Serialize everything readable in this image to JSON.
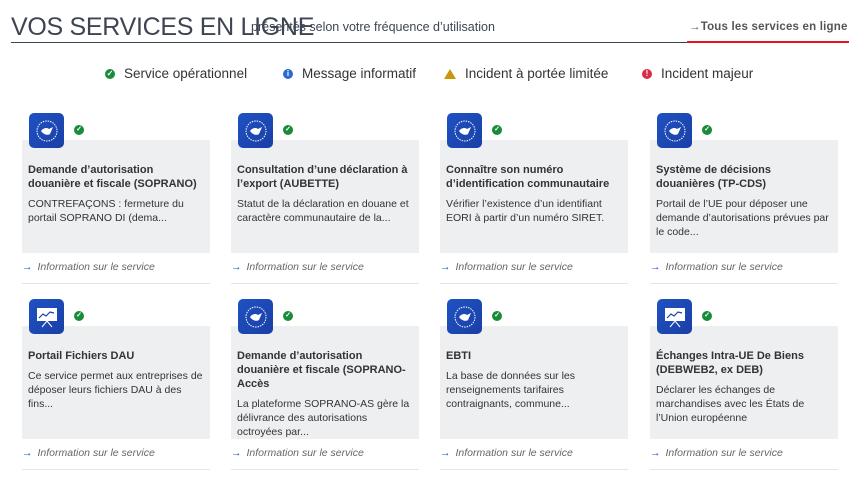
{
  "header": {
    "title": "VOS SERVICES EN LIGNE",
    "subtitle": "présentés selon votre fréquence d’utilisation",
    "all_services_link": "Tous les services en ligne"
  },
  "legend": [
    {
      "label": "Service opérationnel",
      "icon": "check-circle-icon",
      "color": "#198c3a"
    },
    {
      "label": "Message informatif",
      "icon": "info-circle-icon",
      "color": "#2a6ad1"
    },
    {
      "label": "Incident à portée limitée",
      "icon": "warning-triangle-icon",
      "color": "#c9970c"
    },
    {
      "label": "Incident majeur",
      "icon": "exclamation-circle-icon",
      "color": "#d92b45"
    }
  ],
  "cards": [
    {
      "title": "Demande d’autorisation douanière et fiscale (SOPRANO)",
      "desc": "CONTREFAÇONS : fermeture du portail SOPRANO DI (dema...",
      "link": "Information sur le service",
      "icon": "customs-seal-icon",
      "status": "operational"
    },
    {
      "title": "Consultation d’une déclaration à l’export (AUBETTE)",
      "desc": "Statut de la déclaration en douane et caractère communautaire de la...",
      "link": "Information sur le service",
      "icon": "customs-seal-icon",
      "status": "operational"
    },
    {
      "title": "Connaître son numéro d’identification communautaire",
      "desc": "Vérifier l’existence d’un identifiant EORI à partir d’un numéro SIRET.",
      "link": "Information sur le service",
      "icon": "customs-seal-icon",
      "status": "operational"
    },
    {
      "title": "Système de décisions douanières (TP-CDS)",
      "desc": "Portail de l’UE pour déposer une demande d’autorisations prévues par le code...",
      "link": "Information sur le service",
      "icon": "customs-seal-icon",
      "status": "operational"
    },
    {
      "title": "Portail Fichiers DAU",
      "desc": "Ce service permet aux entreprises de déposer leurs fichiers DAU à des fins...",
      "link": "Information sur le service",
      "icon": "presentation-board-icon",
      "status": "operational"
    },
    {
      "title": "Demande d’autorisation douanière et fiscale (SOPRANO-Accès",
      "desc": "La plateforme SOPRANO-AS gère la délivrance des autorisations octroyées par...",
      "link": "Information sur le service",
      "icon": "customs-seal-icon",
      "status": "operational"
    },
    {
      "title": "EBTI",
      "desc": "La base de données sur les renseignements tarifaires contraignants, commune...",
      "link": "Information sur le service",
      "icon": "customs-seal-icon",
      "status": "operational"
    },
    {
      "title": "Échanges Intra-UE De Biens (DEBWEB2, ex DEB)",
      "desc": "Déclarer les échanges de marchandises avec les États de l’Union européenne",
      "link": "Information sur le service",
      "icon": "presentation-board-icon",
      "status": "operational"
    }
  ]
}
